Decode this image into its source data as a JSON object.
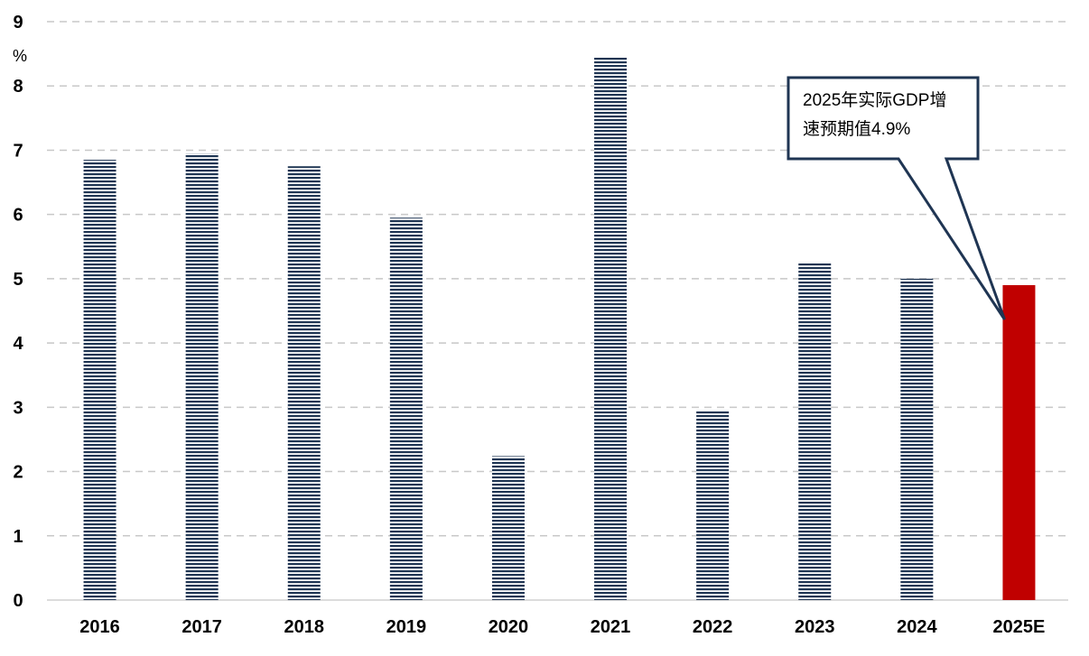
{
  "chart_data": {
    "type": "bar",
    "categories": [
      "2016",
      "2017",
      "2018",
      "2019",
      "2020",
      "2021",
      "2022",
      "2023",
      "2024",
      "2025E"
    ],
    "series": [
      {
        "values": [
          6.85,
          6.95,
          6.75,
          5.95,
          2.24,
          8.45,
          2.95,
          5.25,
          5.0,
          4.9
        ]
      }
    ],
    "ylim": [
      0,
      9
    ],
    "yticks": [
      "0",
      "1",
      "2",
      "3",
      "4",
      "5",
      "6",
      "7",
      "8",
      "9"
    ],
    "yunit": "%",
    "grid": true,
    "legend": "none",
    "highlight_index": 9,
    "colors": {
      "bar": "#1f3553",
      "highlight": "#c00000",
      "grid": "#c8c8c8",
      "axis": "#d0d0d0",
      "callout_border": "#1f3553"
    },
    "annotation": {
      "lines": [
        "2025年实际GDP增",
        "速预期值4.9%"
      ],
      "target_index": 9
    }
  }
}
